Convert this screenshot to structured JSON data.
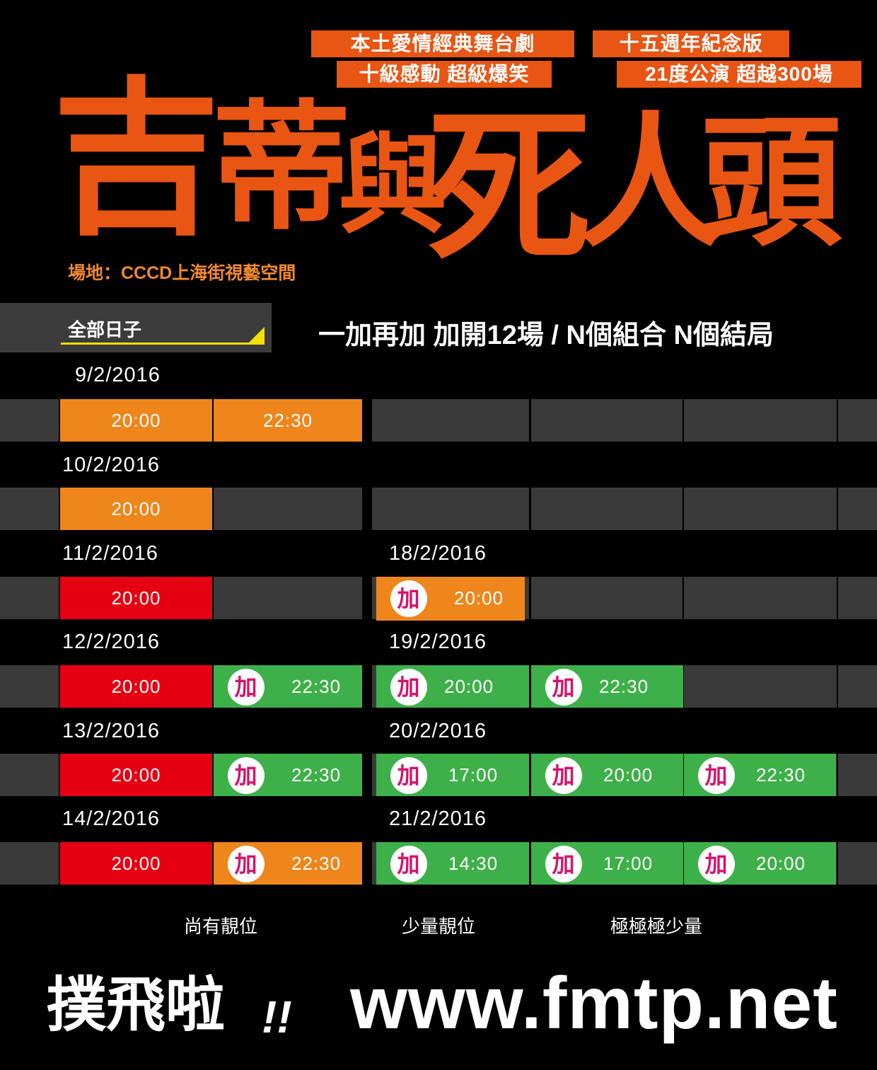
{
  "header": {
    "tags": [
      "本土愛情經典舞台劇",
      "十五週年紀念版",
      "十級感動 超級爆笑",
      "21度公演 超越300場"
    ],
    "title_chars": [
      "吉",
      "蒂",
      "與",
      "死",
      "人",
      "頭"
    ],
    "venue": "場地：CCCD上海街視藝空間"
  },
  "filter": {
    "selected": "全部日子"
  },
  "tagline": "一加再加 加開12場 / N個組合 N個結局",
  "add_badge": "加",
  "schedule": [
    {
      "date": "9/2/2016",
      "date2": "",
      "slots": [
        {
          "time": "20:00",
          "status": "orange"
        },
        {
          "time": "22:30",
          "status": "orange"
        }
      ]
    },
    {
      "date": "10/2/2016",
      "date2": "",
      "slots": [
        {
          "time": "20:00",
          "status": "orange"
        }
      ]
    },
    {
      "date": "11/2/2016",
      "date2": "18/2/2016",
      "slots": [
        {
          "time": "20:00",
          "status": "red"
        },
        {
          "time": "20:00",
          "status": "orange",
          "added": true
        }
      ]
    },
    {
      "date": "12/2/2016",
      "date2": "19/2/2016",
      "slots": [
        {
          "time": "20:00",
          "status": "red"
        },
        {
          "time": "22:30",
          "status": "green",
          "added": true
        },
        {
          "time": "20:00",
          "status": "green",
          "added": true
        },
        {
          "time": "22:30",
          "status": "green",
          "added": true
        }
      ]
    },
    {
      "date": "13/2/2016",
      "date2": "20/2/2016",
      "slots": [
        {
          "time": "20:00",
          "status": "red"
        },
        {
          "time": "22:30",
          "status": "green",
          "added": true
        },
        {
          "time": "17:00",
          "status": "green",
          "added": true
        },
        {
          "time": "20:00",
          "status": "green",
          "added": true
        },
        {
          "time": "22:30",
          "status": "green",
          "added": true
        }
      ]
    },
    {
      "date": "14/2/2016",
      "date2": "21/2/2016",
      "slots": [
        {
          "time": "20:00",
          "status": "red"
        },
        {
          "time": "22:30",
          "status": "orange",
          "added": true
        },
        {
          "time": "14:30",
          "status": "green",
          "added": true
        },
        {
          "time": "17:00",
          "status": "green",
          "added": true
        },
        {
          "time": "20:00",
          "status": "green",
          "added": true
        }
      ]
    }
  ],
  "legend": [
    {
      "label": "尚有靚位",
      "color": "#3eb049"
    },
    {
      "label": "少量靚位",
      "color": "#ee861c"
    },
    {
      "label": "極極極少量",
      "color": "#e50012"
    }
  ],
  "footer": {
    "cta": "撲飛啦",
    "exclaim": "!!",
    "url": "www.fmtp.net"
  },
  "colors": {
    "brand": "#e95513",
    "green": "#3eb049",
    "orange": "#ee861c",
    "red": "#e50012",
    "add_text": "#d4146b"
  }
}
